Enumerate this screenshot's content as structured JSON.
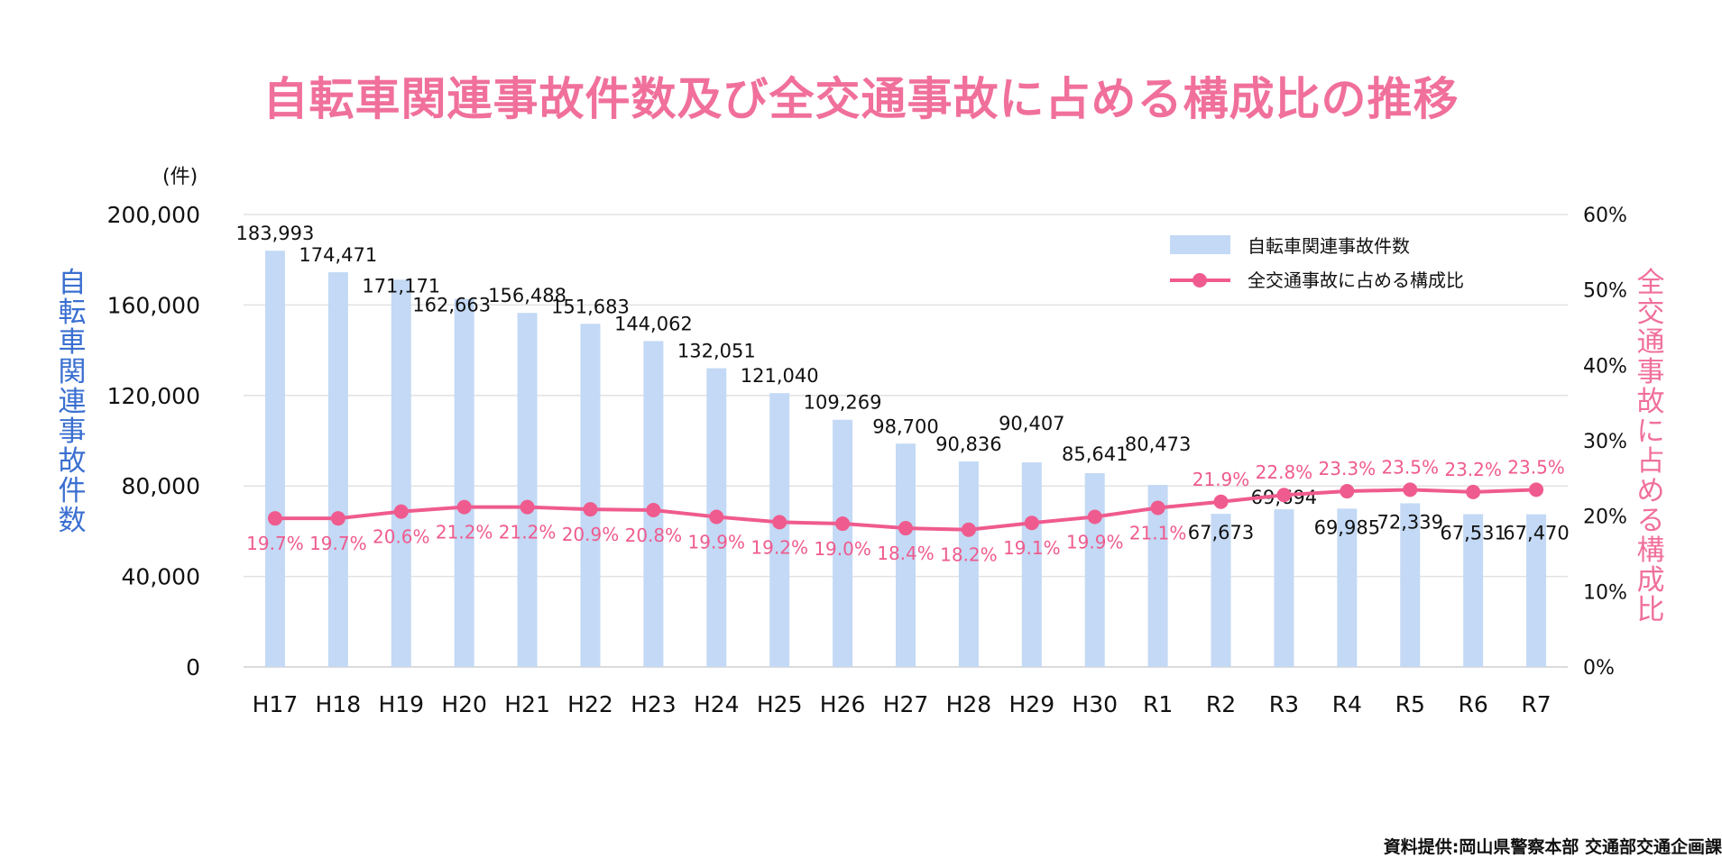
{
  "chart_data": {
    "type": "bar",
    "title": "自転車関連事故件数及び全交通事故に占める構成比の推移",
    "categories": [
      "H17",
      "H18",
      "H19",
      "H20",
      "H21",
      "H22",
      "H23",
      "H24",
      "H25",
      "H26",
      "H27",
      "H28",
      "H29",
      "H30",
      "R1",
      "R2",
      "R3",
      "R4",
      "R5",
      "R6",
      "R7"
    ],
    "series": [
      {
        "name": "自転車関連事故件数",
        "type": "bar",
        "axis": "left",
        "color": "#c3d9f5",
        "values": [
          183993,
          174471,
          171171,
          162663,
          156488,
          151683,
          144062,
          132051,
          121040,
          109269,
          98700,
          90836,
          90407,
          85641,
          80473,
          67673,
          69694,
          69985,
          72339,
          67531,
          67470
        ],
        "labels": [
          "183,993",
          "174,471",
          "171,171",
          "162,663",
          "156,488",
          "151,683",
          "144,062",
          "132,051",
          "121,040",
          "109,269",
          "98,700",
          "90,836",
          "90,407",
          "85,641",
          "80,473",
          "67,673",
          "69,694",
          "69,985",
          "72,339",
          "67,531",
          "67,470"
        ]
      },
      {
        "name": "全交通事故に占める構成比",
        "type": "line",
        "axis": "right",
        "color": "#ef5b8e",
        "values": [
          19.7,
          19.7,
          20.6,
          21.2,
          21.2,
          20.9,
          20.8,
          19.9,
          19.2,
          19.0,
          18.4,
          18.2,
          19.1,
          19.9,
          21.1,
          21.9,
          22.8,
          23.3,
          23.5,
          23.2,
          23.5
        ],
        "labels": [
          "19.7%",
          "19.7%",
          "20.6%",
          "21.2%",
          "21.2%",
          "20.9%",
          "20.8%",
          "19.9%",
          "19.2%",
          "19.0%",
          "18.4%",
          "18.2%",
          "19.1%",
          "19.9%",
          "21.1%",
          "21.9%",
          "22.8%",
          "23.3%",
          "23.5%",
          "23.2%",
          "23.5%"
        ]
      }
    ],
    "ylim": [
      0,
      200000
    ],
    "y2lim": [
      0,
      60
    ],
    "ylabel": "自転車関連事故件数",
    "y2label": "全交通事故に占める構成比",
    "yunit": "(件)",
    "yticks": [
      "0",
      "40,000",
      "80,000",
      "120,000",
      "160,000",
      "200,000"
    ],
    "y2ticks": [
      "0%",
      "10%",
      "20%",
      "30%",
      "40%",
      "50%",
      "60%"
    ],
    "legend": "top-right",
    "grid": true
  },
  "source": "資料提供:岡山県警察本部 交通部交通企画課"
}
